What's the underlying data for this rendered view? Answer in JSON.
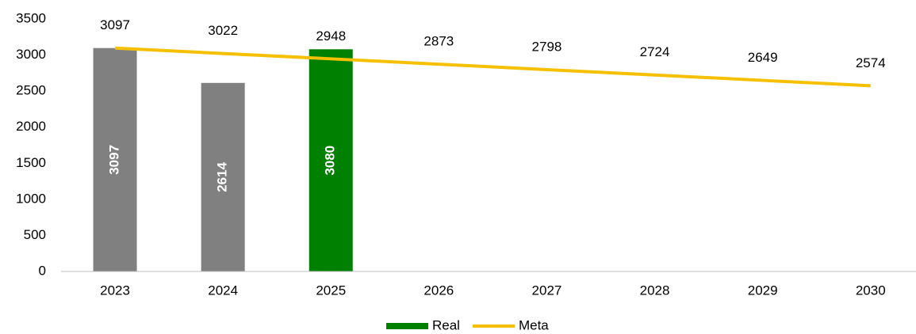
{
  "chart_data": {
    "type": "bar",
    "categories": [
      "2023",
      "2024",
      "2025",
      "2026",
      "2027",
      "2028",
      "2029",
      "2030"
    ],
    "series": [
      {
        "name": "Real",
        "type": "bar",
        "color": "#008000",
        "colors": [
          "#808080",
          "#808080",
          "#008000",
          null,
          null,
          null,
          null,
          null
        ],
        "values": [
          3097,
          2614,
          3080,
          null,
          null,
          null,
          null,
          null
        ]
      },
      {
        "name": "Meta",
        "type": "line",
        "color": "#f5c000",
        "values": [
          3097,
          3022,
          2948,
          2873,
          2798,
          2724,
          2649,
          2574
        ]
      }
    ],
    "ylim": [
      0,
      3500
    ],
    "yticks": [
      0,
      500,
      1000,
      1500,
      2000,
      2500,
      3000,
      3500
    ],
    "grid": false,
    "legend": "bottom"
  }
}
